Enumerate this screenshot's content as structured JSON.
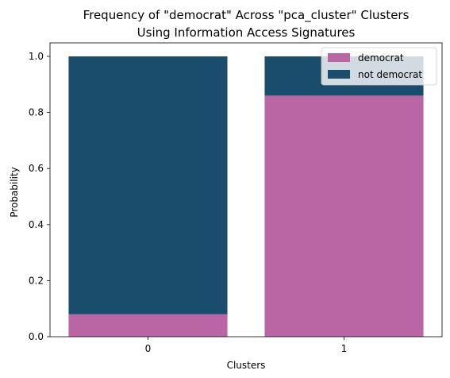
{
  "chart_data": {
    "type": "bar",
    "stacked": true,
    "title": "Frequency of \"democrat\" Across \"pca_cluster\" Clusters",
    "subtitle": "Using Information Access Signatures",
    "xlabel": "Clusters",
    "ylabel": "Probability",
    "categories": [
      "0",
      "1"
    ],
    "ylim": [
      0,
      1.0
    ],
    "yticks": [
      "0.0",
      "0.2",
      "0.4",
      "0.6",
      "0.8",
      "1.0"
    ],
    "grid": false,
    "legend_placement": "top-right",
    "series": [
      {
        "name": "democrat",
        "color": "#bb66a4",
        "values": [
          0.08,
          0.86
        ]
      },
      {
        "name": "not democrat",
        "color": "#1a4d6b",
        "values": [
          0.92,
          0.14
        ]
      }
    ]
  }
}
